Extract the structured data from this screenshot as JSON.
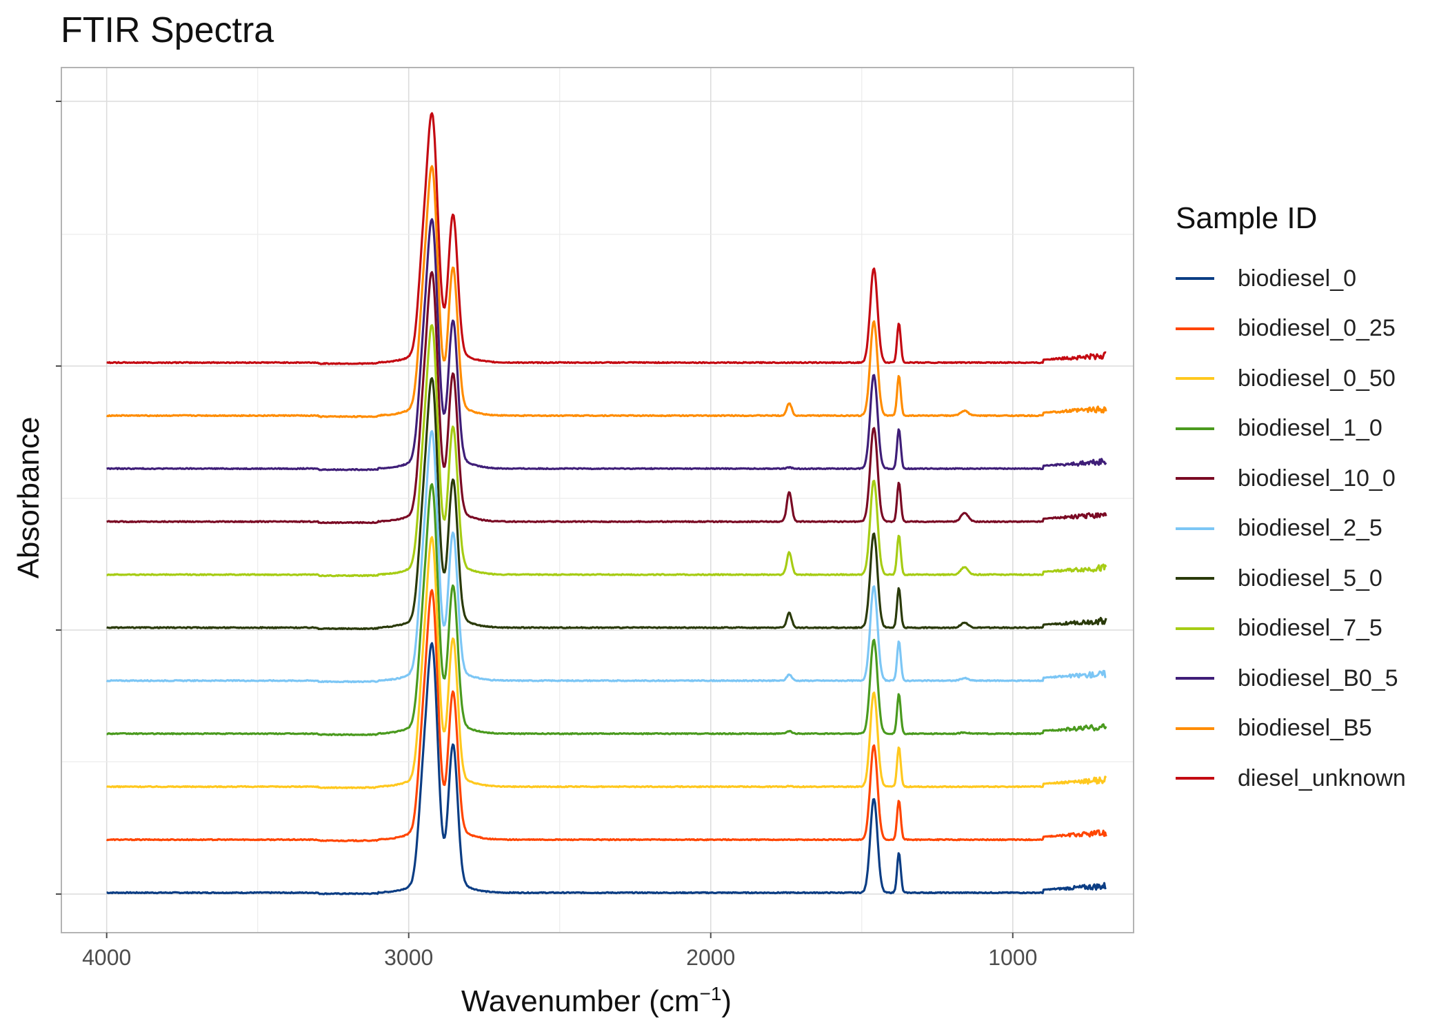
{
  "title": "FTIR Spectra",
  "axes": {
    "x_label_main": "Wavenumber (cm",
    "x_label_sup": "−1",
    "x_label_close": ")",
    "y_label": "Absorbance"
  },
  "legend_title": "Sample ID",
  "chart_data": {
    "type": "line",
    "title": "FTIR Spectra",
    "xlabel": "Wavenumber (cm⁻¹)",
    "ylabel": "Absorbance",
    "x_reversed": true,
    "xlim": [
      4150,
      600
    ],
    "x_ticks": [
      4000,
      3000,
      2000,
      1000
    ],
    "y_tick_labels_shown": false,
    "grid": true,
    "legend_position": "right",
    "stacked_offsets": true,
    "series": [
      {
        "name": "biodiesel_0",
        "color": "#0B3D84",
        "offset": 0,
        "peaks": [
          [
            2955,
            0.3,
            15
          ],
          [
            2922,
            0.92,
            18
          ],
          [
            2853,
            0.55,
            15
          ],
          [
            1740,
            0.0,
            8
          ],
          [
            1460,
            0.38,
            12
          ],
          [
            1377,
            0.16,
            6
          ],
          [
            1160,
            0.0,
            12
          ]
        ]
      },
      {
        "name": "biodiesel_0_25",
        "color": "#FF4500",
        "offset": 1,
        "peaks": [
          [
            2955,
            0.3,
            15
          ],
          [
            2922,
            0.92,
            18
          ],
          [
            2853,
            0.55,
            15
          ],
          [
            1740,
            0.0,
            8
          ],
          [
            1460,
            0.38,
            12
          ],
          [
            1377,
            0.16,
            6
          ],
          [
            1160,
            0.0,
            12
          ]
        ]
      },
      {
        "name": "biodiesel_0_50",
        "color": "#FFC81E",
        "offset": 2,
        "peaks": [
          [
            2955,
            0.3,
            15
          ],
          [
            2922,
            0.92,
            18
          ],
          [
            2853,
            0.55,
            15
          ],
          [
            1740,
            0.003,
            8
          ],
          [
            1460,
            0.38,
            12
          ],
          [
            1377,
            0.16,
            6
          ],
          [
            1160,
            0.0,
            12
          ]
        ]
      },
      {
        "name": "biodiesel_1_0",
        "color": "#4A9A1E",
        "offset": 3,
        "peaks": [
          [
            2955,
            0.3,
            15
          ],
          [
            2922,
            0.92,
            18
          ],
          [
            2853,
            0.55,
            15
          ],
          [
            1740,
            0.01,
            8
          ],
          [
            1460,
            0.38,
            12
          ],
          [
            1377,
            0.16,
            6
          ],
          [
            1160,
            0.005,
            12
          ]
        ]
      },
      {
        "name": "biodiesel_10_0",
        "color": "#7A0A24",
        "offset": 7,
        "peaks": [
          [
            2955,
            0.3,
            15
          ],
          [
            2922,
            0.92,
            18
          ],
          [
            2853,
            0.55,
            15
          ],
          [
            1740,
            0.12,
            8
          ],
          [
            1460,
            0.38,
            12
          ],
          [
            1377,
            0.16,
            6
          ],
          [
            1160,
            0.035,
            12
          ]
        ]
      },
      {
        "name": "biodiesel_2_5",
        "color": "#7CC6F5",
        "offset": 4,
        "peaks": [
          [
            2955,
            0.3,
            15
          ],
          [
            2922,
            0.92,
            18
          ],
          [
            2853,
            0.55,
            15
          ],
          [
            1740,
            0.025,
            8
          ],
          [
            1460,
            0.38,
            12
          ],
          [
            1377,
            0.16,
            6
          ],
          [
            1160,
            0.01,
            12
          ]
        ]
      },
      {
        "name": "biodiesel_5_0",
        "color": "#2A3A0A",
        "offset": 5,
        "peaks": [
          [
            2955,
            0.3,
            15
          ],
          [
            2922,
            0.92,
            18
          ],
          [
            2853,
            0.55,
            15
          ],
          [
            1740,
            0.06,
            8
          ],
          [
            1460,
            0.38,
            12
          ],
          [
            1377,
            0.16,
            6
          ],
          [
            1160,
            0.02,
            12
          ]
        ]
      },
      {
        "name": "biodiesel_7_5",
        "color": "#A6CC14",
        "offset": 6,
        "peaks": [
          [
            2955,
            0.3,
            15
          ],
          [
            2922,
            0.92,
            18
          ],
          [
            2853,
            0.55,
            15
          ],
          [
            1740,
            0.09,
            8
          ],
          [
            1460,
            0.38,
            12
          ],
          [
            1377,
            0.16,
            6
          ],
          [
            1160,
            0.03,
            12
          ]
        ]
      },
      {
        "name": "biodiesel_B0_5",
        "color": "#3F1E78",
        "offset": 8,
        "peaks": [
          [
            2955,
            0.3,
            15
          ],
          [
            2922,
            0.92,
            18
          ],
          [
            2853,
            0.55,
            15
          ],
          [
            1740,
            0.005,
            8
          ],
          [
            1460,
            0.38,
            12
          ],
          [
            1377,
            0.16,
            6
          ],
          [
            1160,
            0.0,
            12
          ]
        ]
      },
      {
        "name": "biodiesel_B5",
        "color": "#FF8C00",
        "offset": 9,
        "peaks": [
          [
            2955,
            0.3,
            15
          ],
          [
            2922,
            0.92,
            18
          ],
          [
            2853,
            0.55,
            15
          ],
          [
            1740,
            0.05,
            8
          ],
          [
            1460,
            0.38,
            12
          ],
          [
            1377,
            0.16,
            6
          ],
          [
            1160,
            0.02,
            12
          ]
        ]
      },
      {
        "name": "diesel_unknown",
        "color": "#C40A12",
        "offset": 10,
        "peaks": [
          [
            2955,
            0.3,
            15
          ],
          [
            2922,
            0.92,
            18
          ],
          [
            2853,
            0.55,
            15
          ],
          [
            1740,
            0.0,
            8
          ],
          [
            1460,
            0.38,
            12
          ],
          [
            1377,
            0.16,
            6
          ],
          [
            1160,
            0.0,
            12
          ]
        ]
      }
    ]
  }
}
